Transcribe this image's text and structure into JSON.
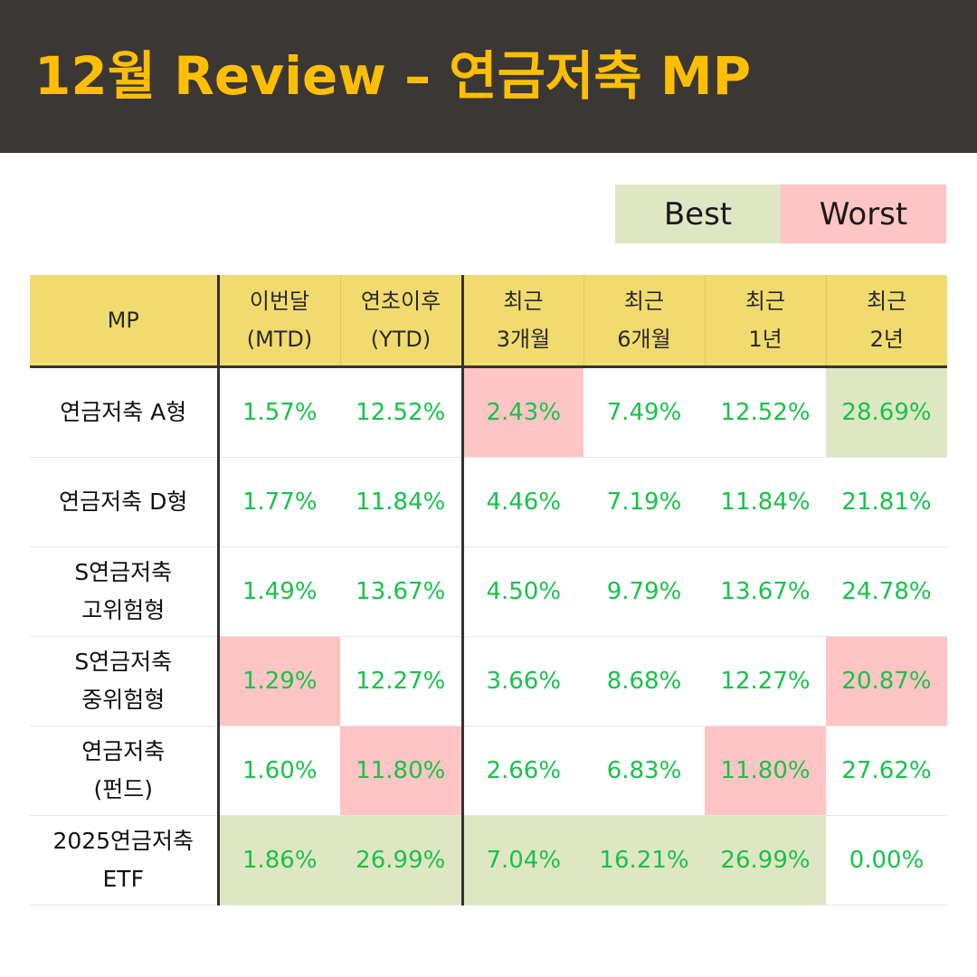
{
  "title": "12월 Review – 연금저축 MP",
  "legend": {
    "best": "Best",
    "worst": "Worst"
  },
  "colors": {
    "header_bg": "#3b3735",
    "title": "#ffbf00",
    "best": "#dfe6c4",
    "worst": "#ffc4c4",
    "value": "#18c24a",
    "table_header": "#f2db6e"
  },
  "columns": [
    {
      "line1": "MP",
      "line2": ""
    },
    {
      "line1": "이번달",
      "line2": "(MTD)"
    },
    {
      "line1": "연초이후",
      "line2": "(YTD)"
    },
    {
      "line1": "최근",
      "line2": "3개월"
    },
    {
      "line1": "최근",
      "line2": "6개월"
    },
    {
      "line1": "최근",
      "line2": "1년"
    },
    {
      "line1": "최근",
      "line2": "2년"
    }
  ],
  "rows": [
    {
      "name1": "연금저축 A형",
      "name2": "",
      "values": [
        "1.57%",
        "12.52%",
        "2.43%",
        "7.49%",
        "12.52%",
        "28.69%"
      ],
      "highlight": [
        "",
        "",
        "worst",
        "",
        "",
        "best"
      ]
    },
    {
      "name1": "연금저축 D형",
      "name2": "",
      "values": [
        "1.77%",
        "11.84%",
        "4.46%",
        "7.19%",
        "11.84%",
        "21.81%"
      ],
      "highlight": [
        "",
        "",
        "",
        "",
        "",
        ""
      ]
    },
    {
      "name1": "S연금저축",
      "name2": "고위험형",
      "values": [
        "1.49%",
        "13.67%",
        "4.50%",
        "9.79%",
        "13.67%",
        "24.78%"
      ],
      "highlight": [
        "",
        "",
        "",
        "",
        "",
        ""
      ]
    },
    {
      "name1": "S연금저축",
      "name2": "중위험형",
      "values": [
        "1.29%",
        "12.27%",
        "3.66%",
        "8.68%",
        "12.27%",
        "20.87%"
      ],
      "highlight": [
        "worst",
        "",
        "",
        "",
        "",
        "worst"
      ]
    },
    {
      "name1": "연금저축",
      "name2": "(펀드)",
      "values": [
        "1.60%",
        "11.80%",
        "2.66%",
        "6.83%",
        "11.80%",
        "27.62%"
      ],
      "highlight": [
        "",
        "worst",
        "",
        "",
        "worst",
        ""
      ]
    },
    {
      "name1": "2025연금저축",
      "name2": "ETF",
      "values": [
        "1.86%",
        "26.99%",
        "7.04%",
        "16.21%",
        "26.99%",
        "0.00%"
      ],
      "highlight": [
        "best",
        "best",
        "best",
        "best",
        "best",
        ""
      ]
    }
  ]
}
